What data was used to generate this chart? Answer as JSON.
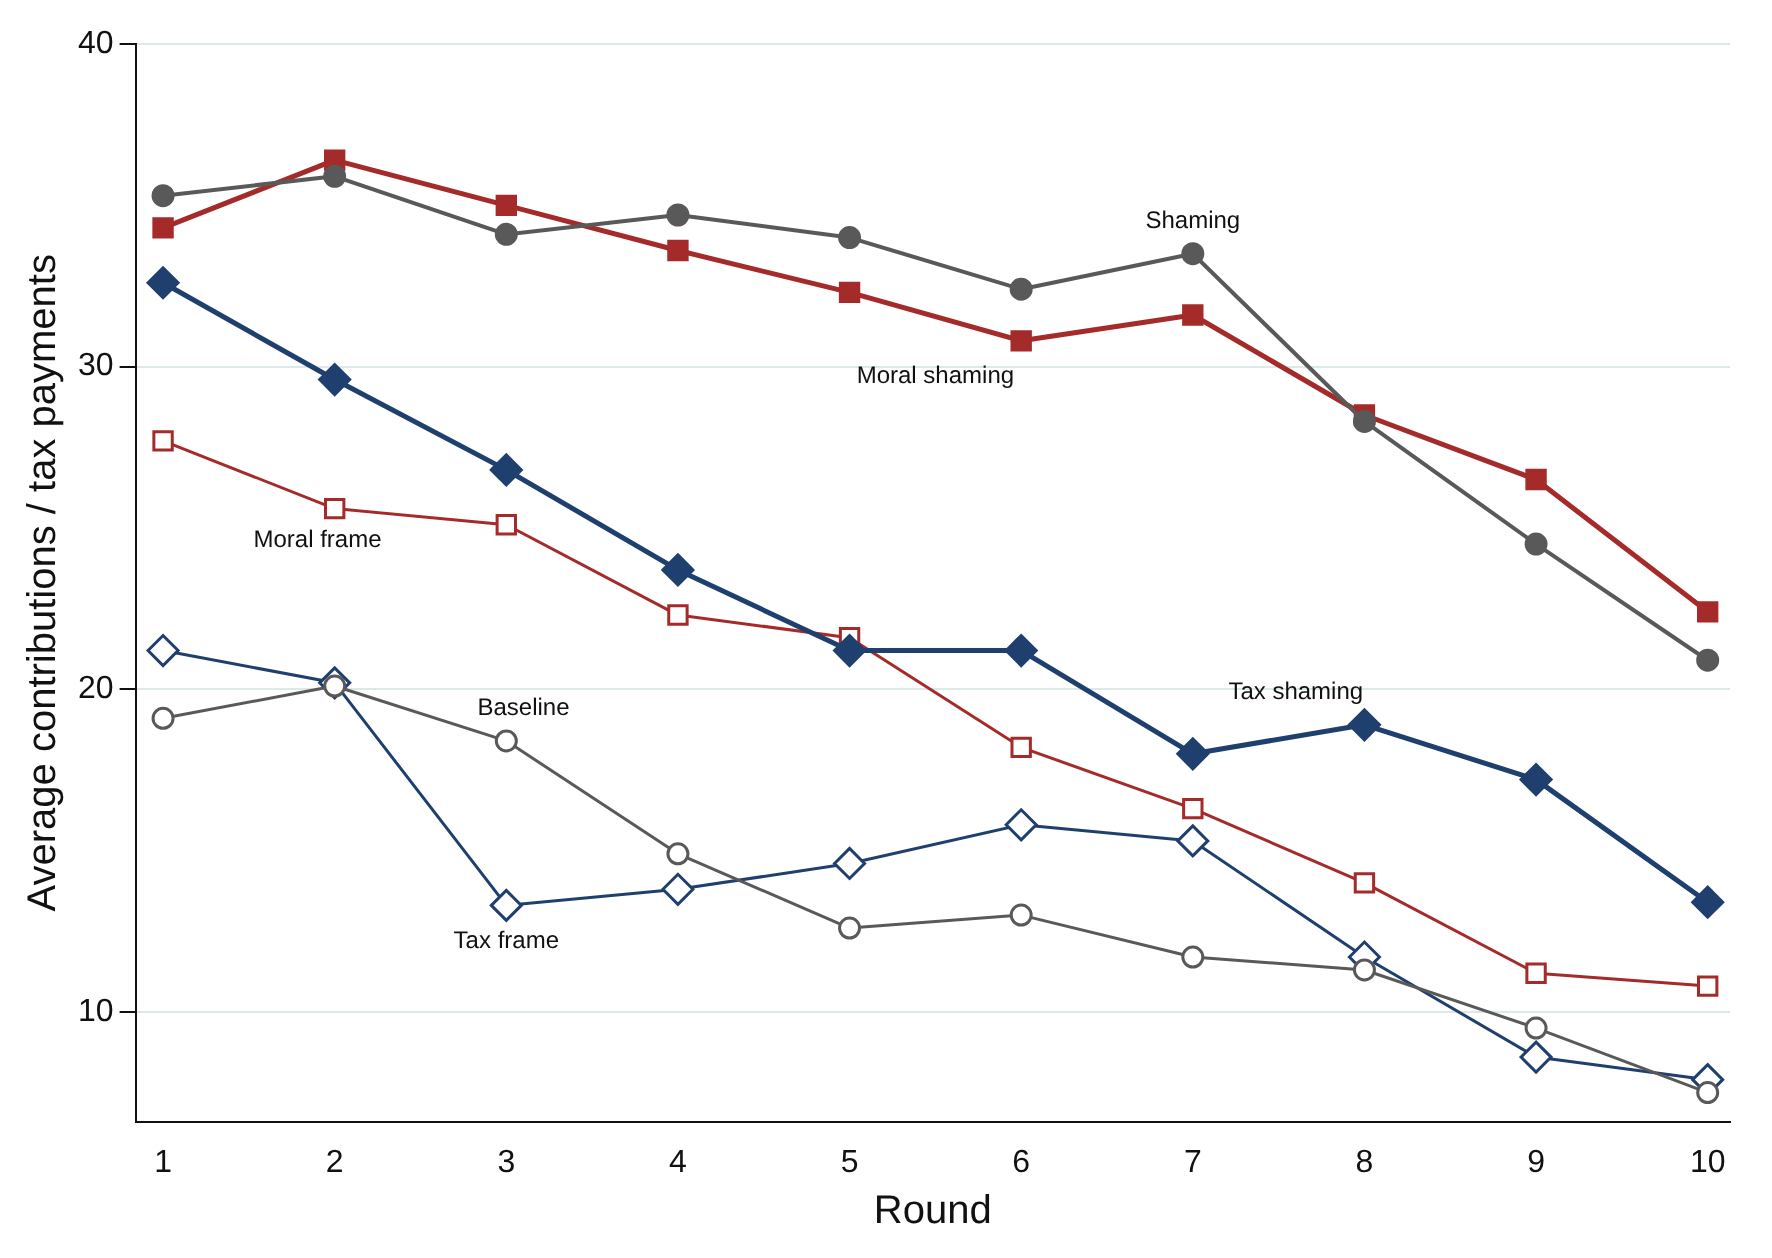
{
  "chart_data": {
    "type": "line",
    "xlabel": "Round",
    "ylabel": "Average contributions / tax payments",
    "x": [
      1,
      2,
      3,
      4,
      5,
      6,
      7,
      8,
      9,
      10
    ],
    "xlim": [
      0.84,
      10.13
    ],
    "xticks": [
      1,
      2,
      3,
      4,
      5,
      6,
      7,
      8,
      9,
      10
    ],
    "ylim": [
      6.6,
      40
    ],
    "yticks": [
      10,
      20,
      30,
      40
    ],
    "grid": "y",
    "legend": false,
    "series": [
      {
        "name": "Shaming",
        "color": "#595959",
        "marker": "circle",
        "values": [
          35.3,
          35.9,
          34.1,
          34.7,
          34.0,
          32.4,
          33.5,
          28.3,
          24.5,
          20.9
        ]
      },
      {
        "name": "Moral shaming",
        "color": "#a52a2a",
        "marker": "square",
        "values": [
          34.3,
          36.4,
          35.0,
          33.6,
          32.3,
          30.8,
          31.6,
          28.5,
          26.5,
          22.4
        ]
      },
      {
        "name": "Tax shaming",
        "color": "#1f3f6e",
        "marker": "diamond",
        "values": [
          32.6,
          29.6,
          26.8,
          23.7,
          21.2,
          21.2,
          18.0,
          18.9,
          17.2,
          13.4
        ]
      },
      {
        "name": "Moral frame",
        "color": "#a52a2a",
        "marker": "square",
        "values": [
          27.7,
          25.6,
          25.1,
          22.3,
          21.6,
          18.2,
          16.3,
          14.0,
          11.2,
          10.8
        ]
      },
      {
        "name": "Baseline",
        "color": "#595959",
        "marker": "circle",
        "values": [
          19.1,
          20.1,
          18.4,
          14.9,
          12.6,
          13.0,
          11.7,
          11.3,
          9.5,
          7.5
        ]
      },
      {
        "name": "Tax frame",
        "color": "#1f3f6e",
        "marker": "diamond",
        "values": [
          21.2,
          20.2,
          13.3,
          13.8,
          14.6,
          15.8,
          15.3,
          11.7,
          8.6,
          7.9
        ]
      }
    ]
  }
}
